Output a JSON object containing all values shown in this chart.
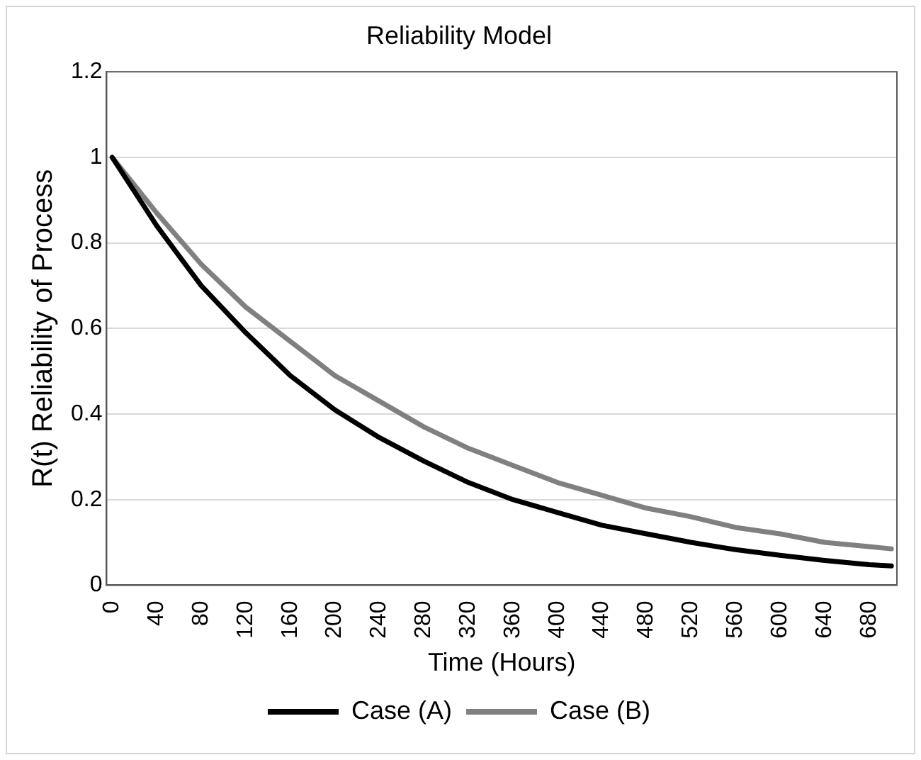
{
  "chart_data": {
    "type": "line",
    "title": "Reliability Model",
    "xlabel": "Time (Hours)",
    "ylabel": "R(t) Reliability of Process",
    "x": [
      0,
      40,
      80,
      120,
      160,
      200,
      240,
      280,
      320,
      360,
      400,
      440,
      480,
      520,
      560,
      600,
      640,
      680,
      700
    ],
    "series": [
      {
        "name": "Case (A)",
        "color": "#000000",
        "values": [
          1,
          0.84,
          0.7,
          0.59,
          0.49,
          0.41,
          0.345,
          0.29,
          0.24,
          0.2,
          0.17,
          0.14,
          0.12,
          0.1,
          0.083,
          0.07,
          0.058,
          0.048,
          0.045
        ]
      },
      {
        "name": "Case (B)",
        "color": "#808080",
        "values": [
          1,
          0.87,
          0.75,
          0.65,
          0.57,
          0.49,
          0.43,
          0.37,
          0.32,
          0.28,
          0.24,
          0.21,
          0.18,
          0.16,
          0.135,
          0.12,
          0.1,
          0.09,
          0.085
        ]
      }
    ],
    "xlim": [
      -5,
      705
    ],
    "xticks": [
      0,
      40,
      80,
      120,
      160,
      200,
      240,
      280,
      320,
      360,
      400,
      440,
      480,
      520,
      560,
      600,
      640,
      680
    ],
    "ylim": [
      0,
      1.2
    ],
    "yticks": [
      0,
      0.2,
      0.4,
      0.6,
      0.8,
      1,
      1.2
    ],
    "grid": "y",
    "legend": "bottom",
    "marker": "none",
    "line_style": "solid"
  }
}
